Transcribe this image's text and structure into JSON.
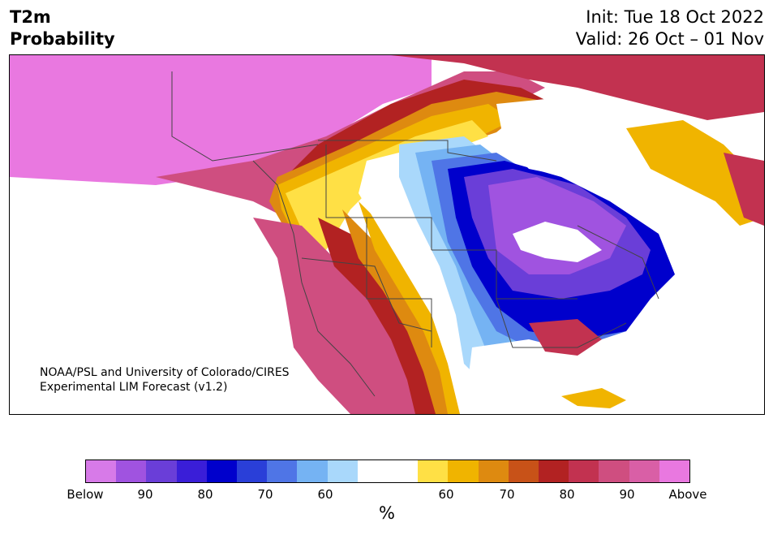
{
  "header": {
    "variable": "T2m",
    "product": "Probability",
    "init": "Init: Tue 18 Oct 2022",
    "valid": "Valid: 26 Oct – 01 Nov"
  },
  "map": {
    "credit_line1": "NOAA/PSL and University of Colorado/CIRES",
    "credit_line2": "Experimental LIM Forecast (v1.2)",
    "colors": {
      "below_strong": "#0000cc",
      "below_mid": "#6a3ed8",
      "below_light": "#75b3f3",
      "neutral": "#ffffff",
      "above_light": "#f0b400",
      "above_mid": "#b22222",
      "above_strong": "#e978e0"
    }
  },
  "colorbar": {
    "units": "%",
    "tick_labels": [
      "Below",
      "90",
      "80",
      "70",
      "60",
      "60",
      "70",
      "80",
      "90",
      "Above"
    ],
    "segments": [
      "#d77ae8",
      "#a053e0",
      "#6a3ed8",
      "#3a1ed8",
      "#0000cc",
      "#2a3fd8",
      "#4f75e6",
      "#75b3f3",
      "#a9d8fb",
      "#ffffff",
      "#ffffff",
      "#ffe045",
      "#f0b400",
      "#de8a10",
      "#c85218",
      "#b22222",
      "#c23250",
      "#cf4e80",
      "#d95fa6",
      "#e978e0"
    ]
  }
}
